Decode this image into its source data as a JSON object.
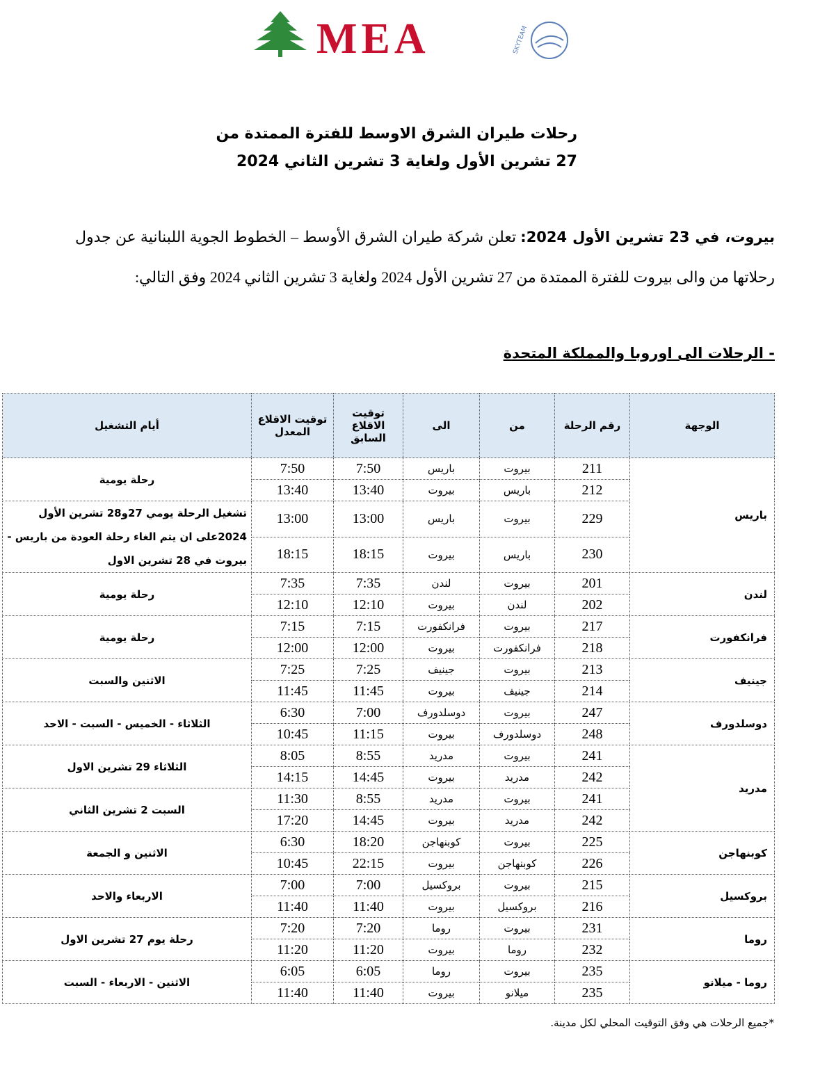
{
  "logo": {
    "brand": "MEA",
    "alliance": "SKYTEAM"
  },
  "title": [
    "رحلات طيران الشرق الاوسط للفترة الممتدة من",
    "27 تشرين الأول ولغاية 3 تشرين الثاني 2024"
  ],
  "paragraph": {
    "lead": "بيروت، في 23 تشرين الأول 2024:",
    "text": " تعلن شركة طيران الشرق الأوسط – الخطوط الجوية اللبنانية عن جدول رحلاتها من والى بيروت للفترة الممتدة من 27 تشرين الأول 2024 ولغاية 3 تشرين الثاني 2024 وفق التالي:"
  },
  "section": "- الرحلات الى اوروبا والمملكة المتحدة",
  "table": {
    "headers": [
      "الوجهة",
      "رقم الرحلة",
      "من",
      "الى",
      "توقيت الاقلاع السابق",
      "توقيت الاقلاع المعدل",
      "أيام التشغيل"
    ],
    "groups": [
      {
        "destination": "باريس",
        "schedules": [
          {
            "days": "رحلة يومية",
            "flights": [
              [
                "211",
                "بيروت",
                "باريس",
                "7:50",
                "7:50"
              ],
              [
                "212",
                "باريس",
                "بيروت",
                "13:40",
                "13:40"
              ]
            ]
          },
          {
            "days": "تشغيل الرحلة يومي 27و28 تشرين الأول 2024على ان يتم الغاء رحلة العودة من باريس - بيروت في 28 تشرين الاول",
            "flights": [
              [
                "229",
                "بيروت",
                "باريس",
                "13:00",
                "13:00"
              ],
              [
                "230",
                "باريس",
                "بيروت",
                "18:15",
                "18:15"
              ]
            ]
          }
        ]
      },
      {
        "destination": "لندن",
        "schedules": [
          {
            "days": "رحلة يومية",
            "flights": [
              [
                "201",
                "بيروت",
                "لندن",
                "7:35",
                "7:35"
              ],
              [
                "202",
                "لندن",
                "بيروت",
                "12:10",
                "12:10"
              ]
            ]
          }
        ]
      },
      {
        "destination": "فرانكفورت",
        "schedules": [
          {
            "days": "رحلة يومية",
            "flights": [
              [
                "217",
                "بيروت",
                "فرانكفورت",
                "7:15",
                "7:15"
              ],
              [
                "218",
                "فرانكفورت",
                "بيروت",
                "12:00",
                "12:00"
              ]
            ]
          }
        ]
      },
      {
        "destination": "جينيف",
        "schedules": [
          {
            "days": "الاثنين والسبت",
            "flights": [
              [
                "213",
                "بيروت",
                "جينيف",
                "7:25",
                "7:25"
              ],
              [
                "214",
                "جينيف",
                "بيروت",
                "11:45",
                "11:45"
              ]
            ]
          }
        ]
      },
      {
        "destination": "دوسلدورف",
        "schedules": [
          {
            "days": "الثلاثاء - الخميس - السبت - الاحد",
            "flights": [
              [
                "247",
                "بيروت",
                "دوسلدورف",
                "7:00",
                "6:30"
              ],
              [
                "248",
                "دوسلدورف",
                "بيروت",
                "11:15",
                "10:45"
              ]
            ]
          }
        ]
      },
      {
        "destination": "مدريد",
        "schedules": [
          {
            "days": "الثلاثاء 29 تشرين الاول",
            "flights": [
              [
                "241",
                "بيروت",
                "مدريد",
                "8:55",
                "8:05"
              ],
              [
                "242",
                "مدريد",
                "بيروت",
                "14:45",
                "14:15"
              ]
            ]
          },
          {
            "days": "السبت 2 تشرين الثاني",
            "flights": [
              [
                "241",
                "بيروت",
                "مدريد",
                "8:55",
                "11:30"
              ],
              [
                "242",
                "مدريد",
                "بيروت",
                "14:45",
                "17:20"
              ]
            ]
          }
        ]
      },
      {
        "destination": "كوبنهاجن",
        "schedules": [
          {
            "days": "الاثنين و الجمعة",
            "flights": [
              [
                "225",
                "بيروت",
                "كوبنهاجن",
                "18:20",
                "6:30"
              ],
              [
                "226",
                "كوبنهاجن",
                "بيروت",
                "22:15",
                "10:45"
              ]
            ]
          }
        ]
      },
      {
        "destination": "بروكسيل",
        "schedules": [
          {
            "days": "الاربعاء والاحد",
            "flights": [
              [
                "215",
                "بيروت",
                "بروكسيل",
                "7:00",
                "7:00"
              ],
              [
                "216",
                "بروكسيل",
                "بيروت",
                "11:40",
                "11:40"
              ]
            ]
          }
        ]
      },
      {
        "destination": "روما",
        "schedules": [
          {
            "days": "رحلة يوم 27 تشرين الاول",
            "flights": [
              [
                "231",
                "بيروت",
                "روما",
                "7:20",
                "7:20"
              ],
              [
                "232",
                "روما",
                "بيروت",
                "11:20",
                "11:20"
              ]
            ]
          }
        ]
      },
      {
        "destination": "روما - ميلانو",
        "schedules": [
          {
            "days": "الاثنين - الاربعاء - السبت",
            "flights": [
              [
                "235",
                "بيروت",
                "روما",
                "6:05",
                "6:05"
              ],
              [
                "235",
                "ميلانو",
                "بيروت",
                "11:40",
                "11:40"
              ]
            ]
          }
        ]
      }
    ]
  },
  "footnote": "*جميع الرحلات هي وفق التوقيت المحلي لكل مدينة."
}
